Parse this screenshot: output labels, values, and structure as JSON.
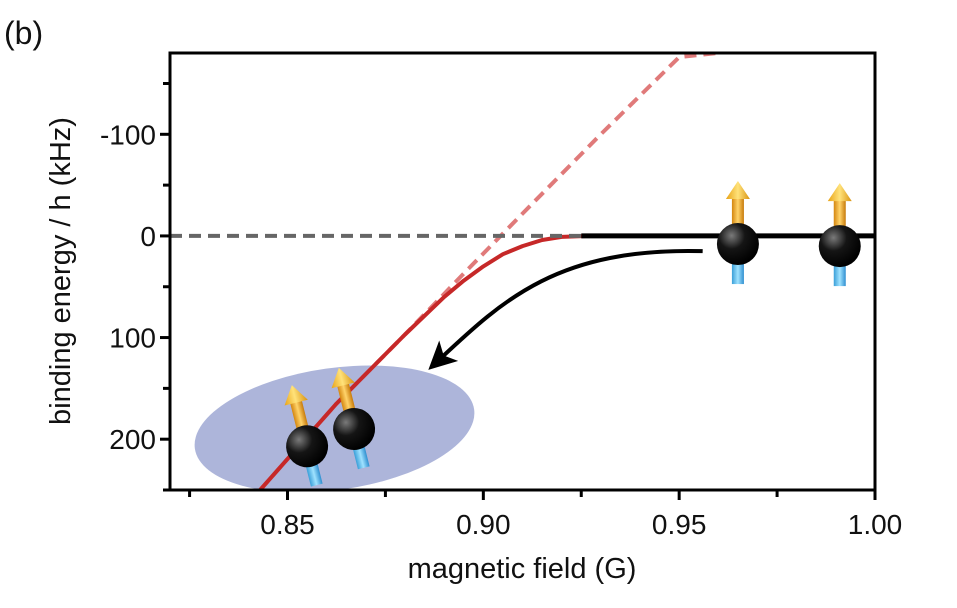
{
  "panel_label": "(b)",
  "chart_data": {
    "type": "line",
    "xlabel": "magnetic field (G)",
    "ylabel": "binding energy / h (kHz)",
    "xlim": [
      0.82,
      1.0
    ],
    "ylim": [
      -180,
      250
    ],
    "y_inverted": true,
    "x_ticks": [
      "0.85",
      "0.90",
      "0.95",
      "1.00"
    ],
    "y_ticks": [
      "-100",
      "0",
      "100",
      "200"
    ],
    "x_tick_values": [
      0.85,
      0.9,
      0.95,
      1.0
    ],
    "y_tick_values": [
      -100,
      0,
      100,
      200
    ],
    "grid": false,
    "series": [
      {
        "style": "dashed",
        "color": "#e07a7a",
        "x": [
          0.843,
          0.8625,
          0.88,
          0.895,
          0.91,
          0.93,
          0.95,
          0.96
        ],
        "y": [
          250,
          165,
          97,
          37,
          -22,
          -100,
          -176,
          -180
        ]
      },
      {
        "style": "solid",
        "color": "#c62828",
        "x": [
          0.843,
          0.8625,
          0.88,
          0.89,
          0.895,
          0.9,
          0.905,
          0.91,
          0.915,
          0.92,
          0.927
        ],
        "y": [
          250,
          165,
          97,
          60,
          44,
          30,
          18,
          10,
          4,
          1,
          0
        ]
      },
      {
        "style": "dashed",
        "color": "#666666",
        "x": [
          0.82,
          0.925
        ],
        "y": [
          0,
          0
        ]
      },
      {
        "style": "solid",
        "color": "#000000",
        "x": [
          0.925,
          1.0
        ],
        "y": [
          0,
          0
        ]
      }
    ],
    "annotations": {
      "arrow": {
        "from": [
          0.956,
          15
        ],
        "to": [
          0.887,
          128
        ]
      },
      "molecule_ellipse": {
        "center": [
          0.862,
          190
        ],
        "rx": 0.036,
        "ry": 60,
        "color": "#9fa8d4"
      },
      "atoms": [
        {
          "x": 0.965,
          "y": 8
        },
        {
          "x": 0.991,
          "y": 10
        },
        {
          "x": 0.855,
          "y": 207
        },
        {
          "x": 0.867,
          "y": 190
        }
      ]
    }
  }
}
